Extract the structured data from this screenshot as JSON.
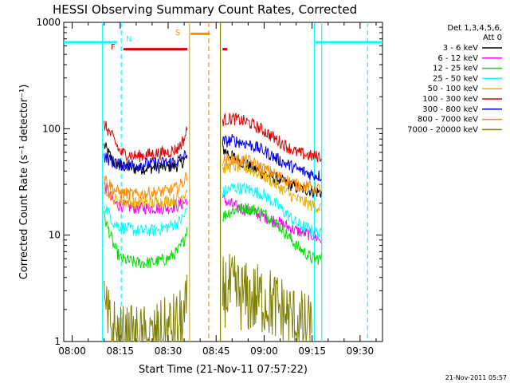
{
  "chart_data": {
    "type": "line",
    "title": "HESSI Observing Summary Count Rates, Corrected",
    "xlabel": "Start Time (21-Nov-11 07:57:22)",
    "ylabel": "Corrected Count Rate (s⁻¹ detector⁻¹)",
    "yscale": "log",
    "ylim": [
      1,
      1000
    ],
    "xlim": [
      "07:57:22",
      "09:37:00"
    ],
    "x_ticks": [
      "08:00",
      "08:15",
      "08:30",
      "08:45",
      "09:00",
      "09:15",
      "09:30"
    ],
    "y_ticks": [
      "1",
      "10",
      "100",
      "1000"
    ],
    "grid": false,
    "legend_position": "right",
    "legend_header": [
      "Det 1,3,4,5,6,",
      "Att 0"
    ],
    "timestamp": "21-Nov-2011 05:57",
    "data_gap": [
      "08:37",
      "08:46"
    ],
    "colors": {
      "3-6": "#000000",
      "6-12": "#ff00ff",
      "12-25": "#00e000",
      "25-50": "#00ffff",
      "50-100": "#e8b000",
      "100-300": "#e00000",
      "300-800": "#0000e0",
      "800-7000": "#ff8c00",
      "7000-20000": "#808000"
    },
    "series": [
      {
        "name": "3 - 6 keV",
        "color": "#000000",
        "segments": [
          {
            "t": [
              "08:10",
              "08:13",
              "08:15",
              "08:20",
              "08:25",
              "08:30",
              "08:33",
              "08:35",
              "08:36"
            ],
            "v": [
              70,
              48,
              45,
              42,
              43,
              44,
              45,
              50,
              55
            ]
          },
          {
            "t": [
              "08:47",
              "08:50",
              "08:55",
              "09:00",
              "09:05",
              "09:10",
              "09:15",
              "09:18"
            ],
            "v": [
              65,
              55,
              45,
              38,
              33,
              28,
              26,
              25
            ]
          }
        ]
      },
      {
        "name": "6 - 12 keV",
        "color": "#ff00ff",
        "segments": [
          {
            "t": [
              "08:10",
              "08:13",
              "08:15",
              "08:20",
              "08:25",
              "08:30",
              "08:33",
              "08:35",
              "08:36"
            ],
            "v": [
              30,
              20,
              19,
              18,
              18,
              18,
              19,
              20,
              22
            ]
          },
          {
            "t": [
              "08:47",
              "08:50",
              "08:55",
              "09:00",
              "09:05",
              "09:10",
              "09:15",
              "09:18"
            ],
            "v": [
              22,
              19,
              17,
              15,
              13,
              11,
              10,
              9
            ]
          }
        ]
      },
      {
        "name": "12 - 25 keV",
        "color": "#00e000",
        "segments": [
          {
            "t": [
              "08:10",
              "08:13",
              "08:15",
              "08:20",
              "08:25",
              "08:30",
              "08:33",
              "08:35",
              "08:36"
            ],
            "v": [
              15,
              8,
              6,
              5.5,
              5.5,
              6,
              7,
              9,
              12
            ]
          },
          {
            "t": [
              "08:47",
              "08:50",
              "08:55",
              "09:00",
              "09:05",
              "09:10",
              "09:15",
              "09:18"
            ],
            "v": [
              15,
              17,
              18,
              16,
              12,
              8,
              6,
              6
            ]
          }
        ]
      },
      {
        "name": "25 - 50 keV",
        "color": "#00ffff",
        "segments": [
          {
            "t": [
              "08:10",
              "08:13",
              "08:15",
              "08:20",
              "08:25",
              "08:30",
              "08:33",
              "08:35",
              "08:36"
            ],
            "v": [
              20,
              13,
              12,
              11,
              11,
              12,
              13,
              15,
              18
            ]
          },
          {
            "t": [
              "08:47",
              "08:50",
              "08:55",
              "09:00",
              "09:05",
              "09:10",
              "09:15",
              "09:18"
            ],
            "v": [
              25,
              28,
              27,
              24,
              18,
              13,
              11,
              10
            ]
          }
        ]
      },
      {
        "name": "50 - 100 keV",
        "color": "#e8b000",
        "segments": [
          {
            "t": [
              "08:10",
              "08:13",
              "08:15",
              "08:20",
              "08:25",
              "08:30",
              "08:33",
              "08:35",
              "08:36"
            ],
            "v": [
              28,
              22,
              21,
              20,
              20,
              21,
              22,
              24,
              28
            ]
          },
          {
            "t": [
              "08:47",
              "08:50",
              "08:55",
              "09:00",
              "09:05",
              "09:10",
              "09:15",
              "09:18"
            ],
            "v": [
              42,
              45,
              42,
              36,
              28,
              22,
              19,
              18
            ]
          }
        ]
      },
      {
        "name": "100 - 300 keV",
        "color": "#e00000",
        "segments": [
          {
            "t": [
              "08:10",
              "08:13",
              "08:15",
              "08:20",
              "08:25",
              "08:30",
              "08:33",
              "08:35",
              "08:36"
            ],
            "v": [
              110,
              80,
              60,
              55,
              58,
              60,
              65,
              80,
              100
            ]
          },
          {
            "t": [
              "08:47",
              "08:50",
              "08:55",
              "09:00",
              "09:05",
              "09:10",
              "09:15",
              "09:18"
            ],
            "v": [
              120,
              125,
              115,
              95,
              75,
              60,
              55,
              55
            ]
          }
        ]
      },
      {
        "name": "300 - 800 keV",
        "color": "#0000e0",
        "segments": [
          {
            "t": [
              "08:10",
              "08:13",
              "08:15",
              "08:20",
              "08:25",
              "08:30",
              "08:33",
              "08:35",
              "08:36"
            ],
            "v": [
              55,
              48,
              46,
              46,
              47,
              48,
              50,
              55,
              60
            ]
          },
          {
            "t": [
              "08:47",
              "08:50",
              "08:55",
              "09:00",
              "09:05",
              "09:10",
              "09:15",
              "09:18"
            ],
            "v": [
              75,
              78,
              72,
              62,
              50,
              42,
              37,
              36
            ]
          }
        ]
      },
      {
        "name": "800 - 7000 keV",
        "color": "#ff8c00",
        "segments": [
          {
            "t": [
              "08:10",
              "08:13",
              "08:15",
              "08:20",
              "08:25",
              "08:30",
              "08:33",
              "08:35",
              "08:36"
            ],
            "v": [
              35,
              27,
              25,
              24,
              25,
              26,
              28,
              32,
              38
            ]
          },
          {
            "t": [
              "08:47",
              "08:50",
              "08:55",
              "09:00",
              "09:05",
              "09:10",
              "09:15",
              "09:18"
            ],
            "v": [
              50,
              52,
              50,
              42,
              35,
              30,
              28,
              27
            ]
          }
        ]
      },
      {
        "name": "7000 - 20000 keV",
        "color": "#808000",
        "segments": [
          {
            "t": [
              "08:10",
              "08:11",
              "08:15",
              "08:25",
              "08:35",
              "08:36"
            ],
            "v": [
              2,
              1.5,
              1,
              1,
              1.5,
              2
            ]
          },
          {
            "t": [
              "08:47",
              "08:50",
              "08:55",
              "09:00",
              "09:05",
              "09:10",
              "09:15"
            ],
            "v": [
              3,
              3,
              2.5,
              2.5,
              2,
              1.5,
              1.2
            ]
          }
        ]
      }
    ],
    "flag_bars": [
      {
        "label": "",
        "color": "#00ffff",
        "segments": [
          [
            "07:57:22",
            "08:14"
          ],
          [
            "09:16",
            "09:37"
          ]
        ],
        "level": 650
      },
      {
        "label": "N",
        "color": "#00ffff",
        "segments": [],
        "level": 650
      },
      {
        "label": "F",
        "color": "#e00000",
        "segments": [
          [
            "08:16",
            "08:36"
          ],
          [
            "08:47",
            "08:48:30"
          ]
        ],
        "level": 560
      },
      {
        "label": "S",
        "color": "#ff8c00",
        "segments": [
          [
            "08:37",
            "08:43"
          ]
        ],
        "level": 780
      }
    ],
    "vertical_lines": [
      {
        "t": "08:09:30",
        "color": "#00ffff",
        "style": "solid"
      },
      {
        "t": "08:15:20",
        "color": "#00ffff",
        "style": "dashed"
      },
      {
        "t": "08:36:40",
        "color": "#e8b000",
        "style": "solid"
      },
      {
        "t": "08:42:40",
        "color": "#ff8c00",
        "style": "dashed"
      },
      {
        "t": "08:46:20",
        "color": "#808000",
        "style": "solid"
      },
      {
        "t": "09:15:40",
        "color": "#00ffff",
        "style": "solid"
      },
      {
        "t": "09:18:00",
        "color": "#00ffff",
        "style": "solid"
      },
      {
        "t": "09:32:20",
        "color": "#00ffff",
        "style": "dashed"
      }
    ]
  }
}
